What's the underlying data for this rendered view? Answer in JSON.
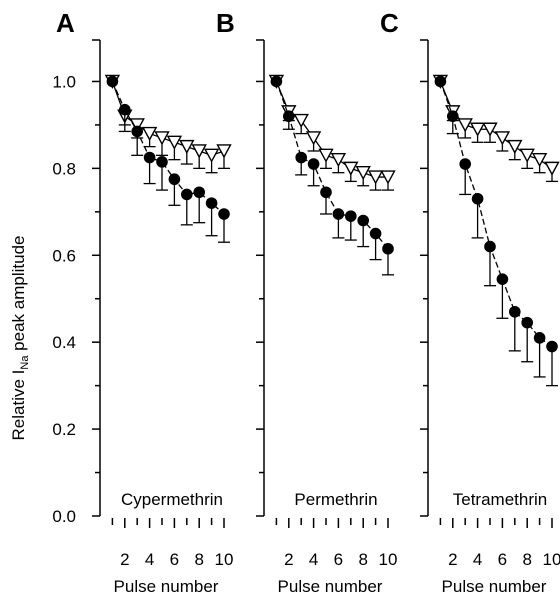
{
  "figure": {
    "ylabel_pre": "Relative I",
    "ylabel_sub": "Na",
    "ylabel_post": " peak amplitude",
    "xlabel": "Pulse number",
    "yticks": [
      "0.0",
      "0.2",
      "0.4",
      "0.6",
      "0.8",
      "1.0"
    ],
    "xtick_labels": [
      "2",
      "4",
      "6",
      "8",
      "10"
    ]
  },
  "chart_data": [
    {
      "type": "line",
      "panel_letter": "A",
      "compound": "Cypermethrin",
      "x": [
        1,
        2,
        3,
        4,
        5,
        6,
        7,
        8,
        9,
        10
      ],
      "ylim": [
        0,
        1.1
      ],
      "xlim": [
        0,
        10.5
      ],
      "xlabel": "Pulse number",
      "ylabel": "Relative INa peak amplitude",
      "series": [
        {
          "marker": "open-triangle",
          "values": [
            1.0,
            0.92,
            0.9,
            0.88,
            0.87,
            0.86,
            0.85,
            0.84,
            0.83,
            0.84
          ],
          "error": [
            0.0,
            0.02,
            0.03,
            0.03,
            0.04,
            0.04,
            0.04,
            0.04,
            0.04,
            0.04
          ]
        },
        {
          "marker": "filled-circle",
          "values": [
            1.0,
            0.935,
            0.885,
            0.825,
            0.815,
            0.775,
            0.74,
            0.745,
            0.72,
            0.695
          ],
          "error": [
            0.0,
            0.05,
            0.055,
            0.06,
            0.065,
            0.06,
            0.07,
            0.07,
            0.075,
            0.065
          ]
        }
      ]
    },
    {
      "type": "line",
      "panel_letter": "B",
      "compound": "Permethrin",
      "x": [
        1,
        2,
        3,
        4,
        5,
        6,
        7,
        8,
        9,
        10
      ],
      "ylim": [
        0,
        1.1
      ],
      "xlim": [
        0,
        10.5
      ],
      "xlabel": "Pulse number",
      "ylabel": "Relative INa peak amplitude",
      "series": [
        {
          "marker": "open-triangle",
          "values": [
            1.0,
            0.93,
            0.91,
            0.87,
            0.83,
            0.82,
            0.8,
            0.79,
            0.78,
            0.78
          ],
          "error": [
            0.0,
            0.02,
            0.03,
            0.03,
            0.03,
            0.03,
            0.03,
            0.03,
            0.03,
            0.03
          ]
        },
        {
          "marker": "filled-circle",
          "values": [
            1.0,
            0.92,
            0.825,
            0.81,
            0.745,
            0.695,
            0.69,
            0.68,
            0.65,
            0.615
          ],
          "error": [
            0.0,
            0.03,
            0.04,
            0.05,
            0.05,
            0.055,
            0.055,
            0.06,
            0.06,
            0.06
          ]
        }
      ]
    },
    {
      "type": "line",
      "panel_letter": "C",
      "compound": "Tetramethrin",
      "x": [
        1,
        2,
        3,
        4,
        5,
        6,
        7,
        8,
        9,
        10
      ],
      "ylim": [
        0,
        1.1
      ],
      "xlim": [
        0,
        10.5
      ],
      "xlabel": "Pulse number",
      "ylabel": "Relative INa peak amplitude",
      "series": [
        {
          "marker": "open-triangle",
          "values": [
            1.0,
            0.93,
            0.9,
            0.89,
            0.89,
            0.87,
            0.85,
            0.83,
            0.82,
            0.8
          ],
          "error": [
            0.0,
            0.02,
            0.03,
            0.03,
            0.03,
            0.03,
            0.03,
            0.03,
            0.03,
            0.03
          ]
        },
        {
          "marker": "filled-circle",
          "values": [
            1.0,
            0.92,
            0.81,
            0.73,
            0.62,
            0.545,
            0.47,
            0.445,
            0.41,
            0.39
          ],
          "error": [
            0.0,
            0.04,
            0.07,
            0.09,
            0.09,
            0.09,
            0.09,
            0.09,
            0.09,
            0.09
          ]
        }
      ]
    }
  ]
}
